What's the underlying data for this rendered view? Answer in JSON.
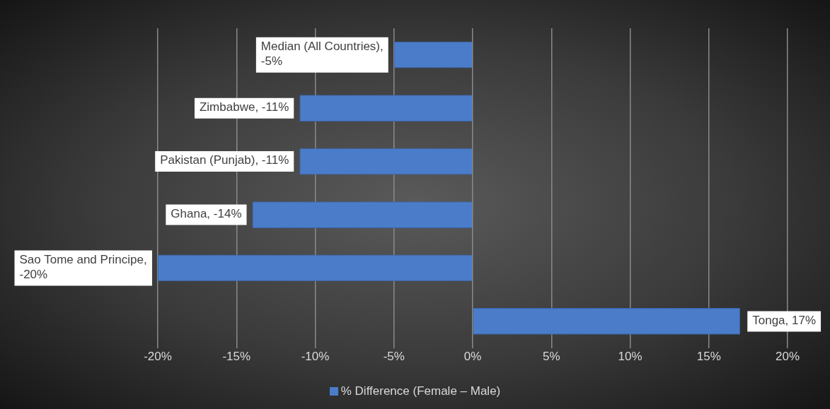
{
  "chart_data": {
    "type": "bar",
    "orientation": "horizontal",
    "categories": [
      null,
      null,
      null,
      null,
      null,
      null
    ],
    "series": [
      {
        "name": "% Difference (Female – Male)",
        "color": "#4a7cc9",
        "values": [
          -5,
          -11,
          -11,
          -14,
          -20,
          17
        ],
        "value_labels": [
          "Median (All Countries), -5%",
          "Zimbabwe, -11%",
          "Pakistan (Punjab), -11%",
          "Ghana, -14%",
          "Sao Tome and Principe, -20%",
          "Tonga, 17%"
        ]
      }
    ],
    "xlim": [
      -20,
      20
    ],
    "xticks": [
      {
        "value": -20,
        "label": "-20%"
      },
      {
        "value": -15,
        "label": "-15%"
      },
      {
        "value": -10,
        "label": "-10%"
      },
      {
        "value": -5,
        "label": "-5%"
      },
      {
        "value": 0,
        "label": "0%"
      },
      {
        "value": 5,
        "label": "5%"
      },
      {
        "value": 10,
        "label": "10%"
      },
      {
        "value": 15,
        "label": "15%"
      },
      {
        "value": 20,
        "label": "20%"
      }
    ],
    "tick_labels": "x",
    "grid": "x",
    "legend": "bottom"
  }
}
